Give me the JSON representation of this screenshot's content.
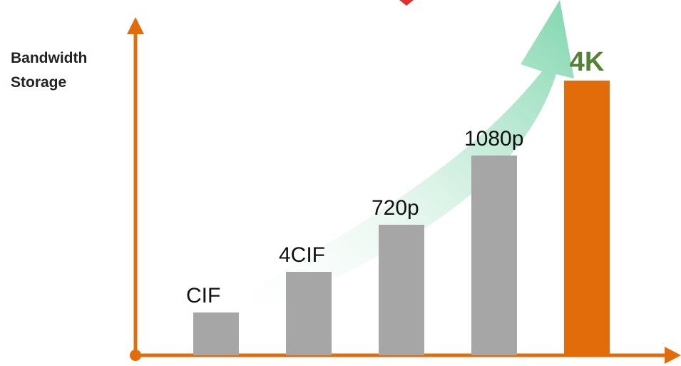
{
  "chart_data": {
    "type": "bar",
    "y_label": [
      "Bandwidth",
      "Storage"
    ],
    "categories": [
      "CIF",
      "4CIF",
      "720p",
      "1080p",
      "4K"
    ],
    "values": [
      60,
      117,
      183,
      280,
      385
    ],
    "colors": [
      "#a6a6a6",
      "#a6a6a6",
      "#a6a6a6",
      "#a6a6a6",
      "#e36c0a"
    ],
    "label_colors": [
      "#111111",
      "#111111",
      "#111111",
      "#111111",
      "#548235"
    ],
    "ylim": [
      0,
      468
    ]
  }
}
